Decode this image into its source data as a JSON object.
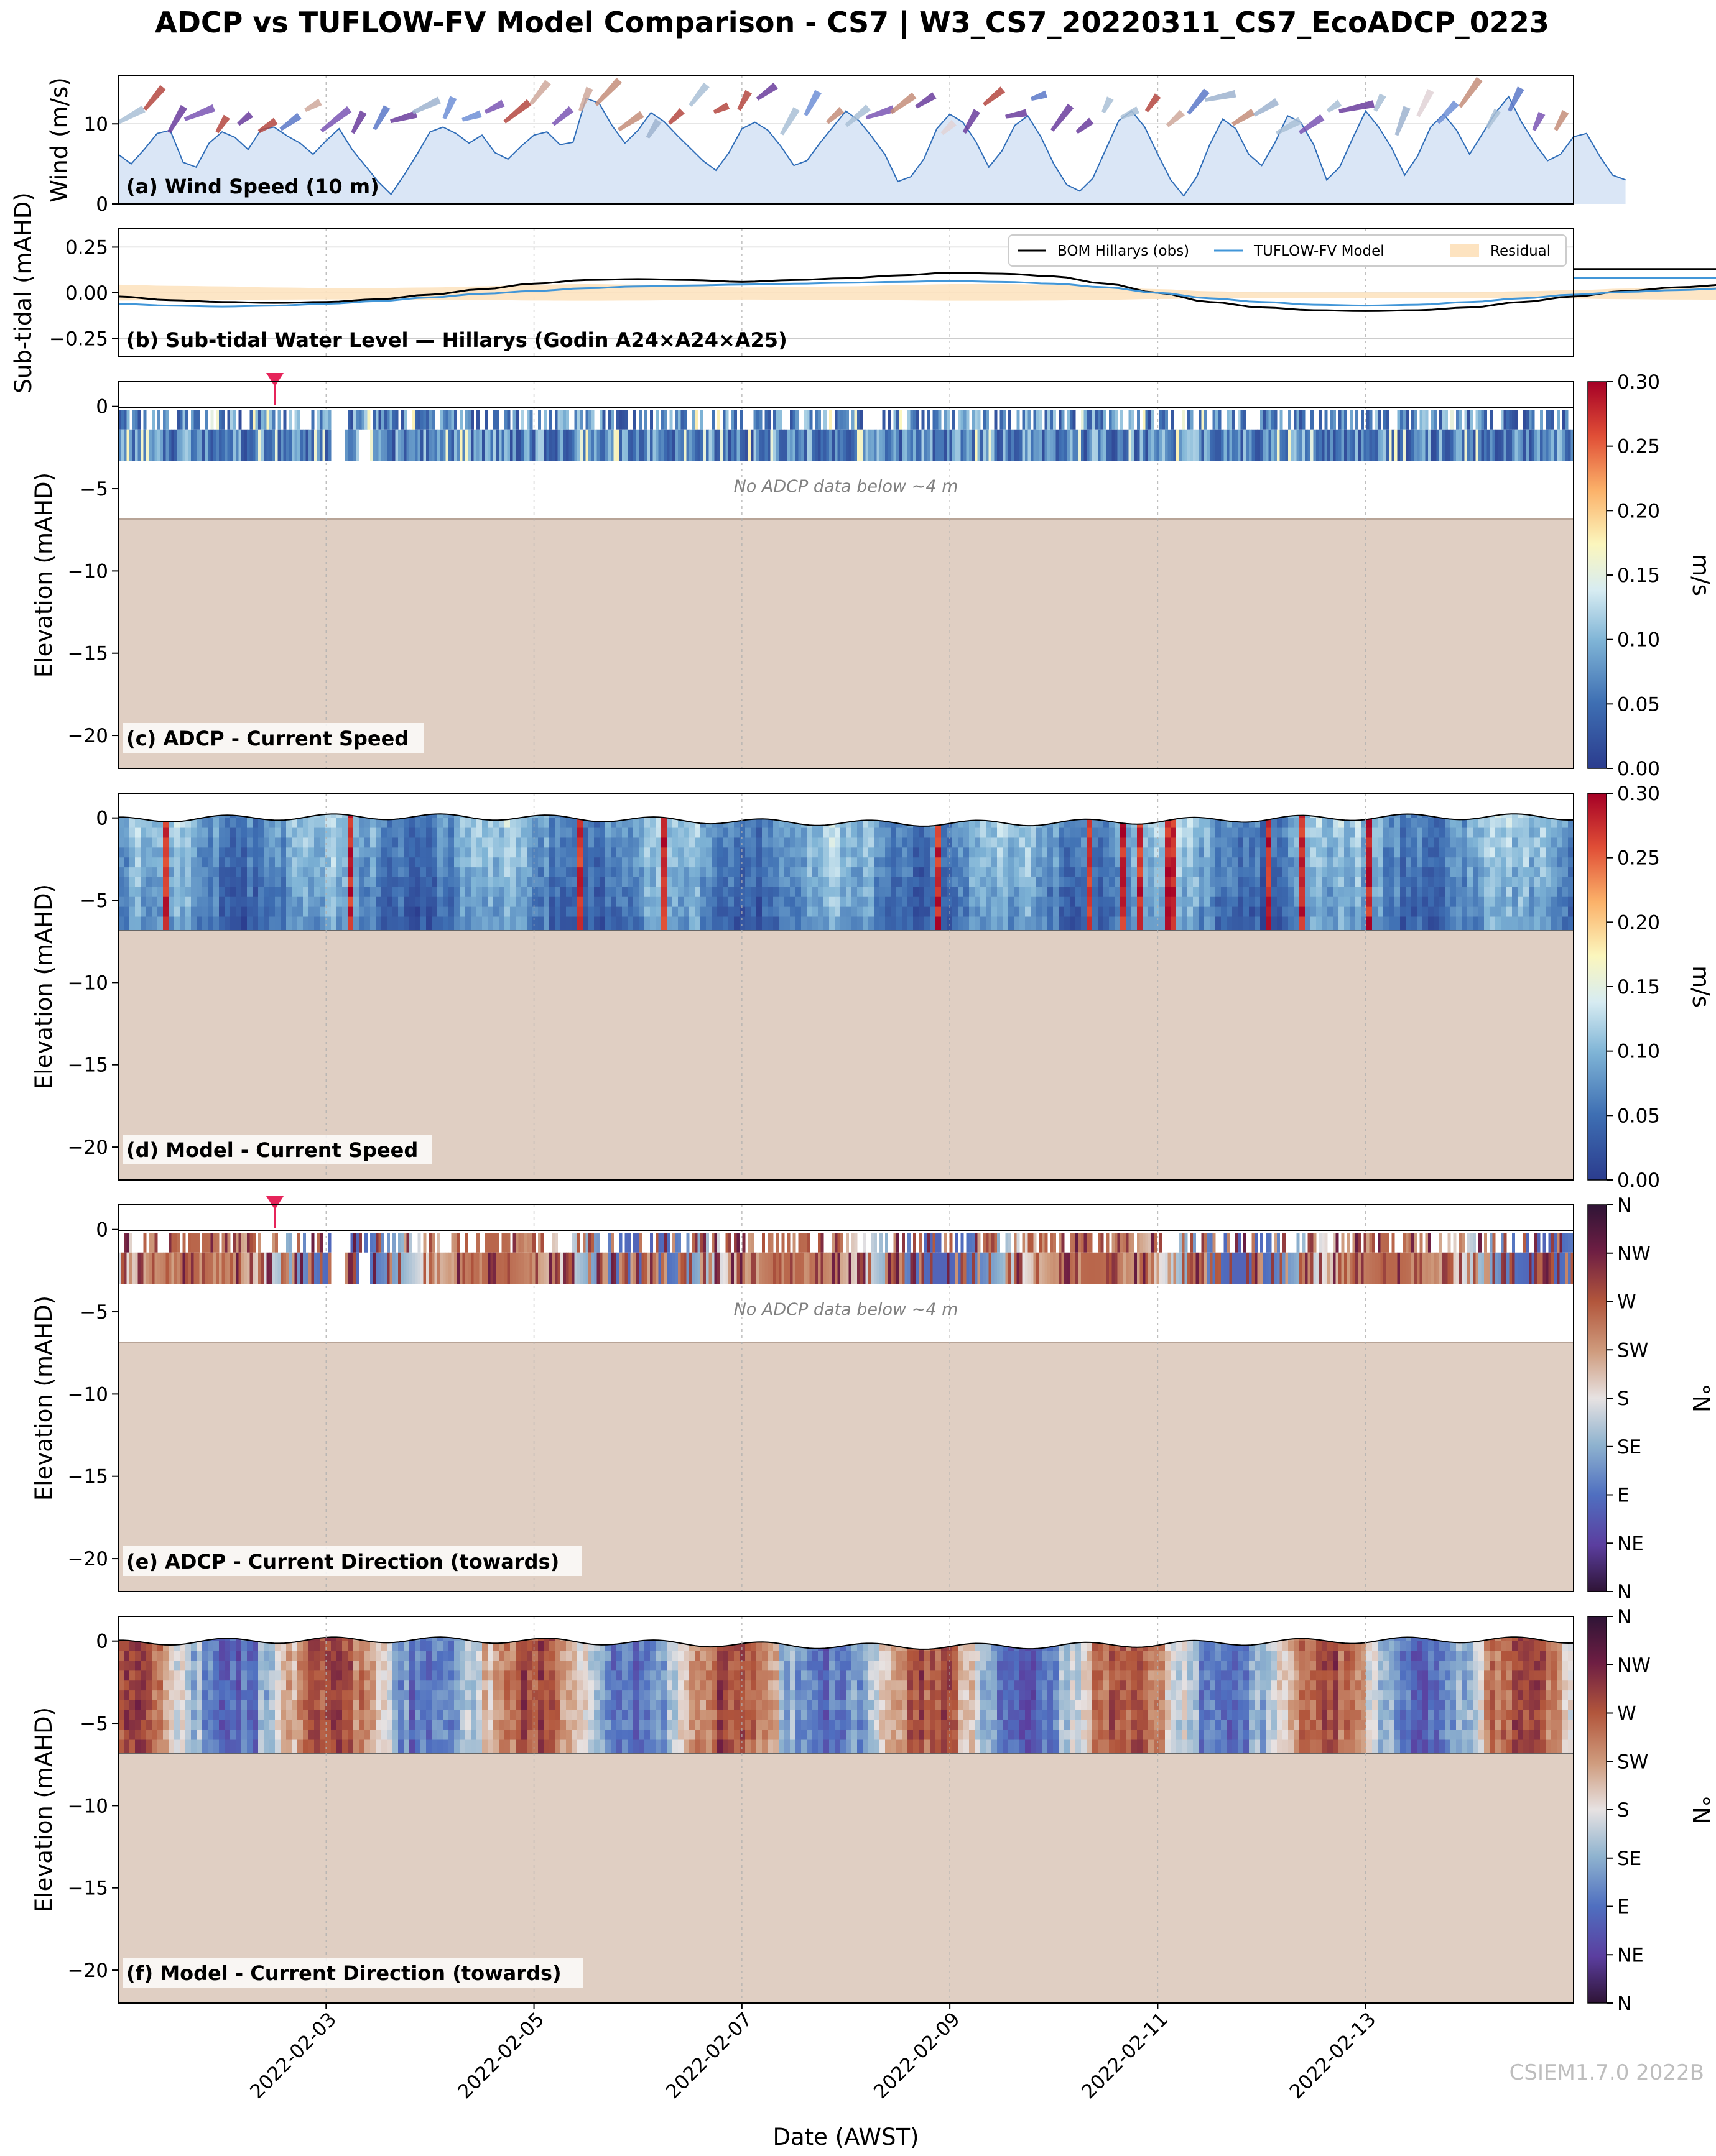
{
  "figure": {
    "title": "ADCP vs TUFLOW-FV Model Comparison - CS7 | W3_CS7_20220311_CS7_EcoADCP_0223",
    "xlabel": "Date (AWST)",
    "x_ticks": [
      "2022-02-03",
      "2022-02-05",
      "2022-02-07",
      "2022-02-09",
      "2022-02-11",
      "2022-02-13"
    ],
    "watermark": "CSIEM1.7.0 2022B",
    "colors": {
      "seabed": "#e0cfc3",
      "wind_fill": "#dae6f6",
      "wind_line": "#2f6db8",
      "marker": "#e6245a",
      "residual": "#fde3c0",
      "obs": "#000000",
      "model": "#4196d8"
    }
  },
  "chart_data": [
    {
      "panel": "a",
      "type": "area",
      "label": "(a) Wind Speed (10 m)",
      "ylabel": "Wind (m/s)",
      "ylim": [
        0,
        16
      ],
      "y_ticks": [
        "0",
        "10"
      ],
      "x_range": [
        "2022-02-01 00:00",
        "2022-02-15 00:00"
      ],
      "series": [
        {
          "x_start": "2022-02-01 00:00",
          "x_step_hours": 3,
          "values": [
            6.2,
            5.0,
            6.8,
            8.8,
            9.2,
            5.2,
            4.6,
            7.6,
            9.0,
            8.3,
            6.8,
            9.3,
            9.6,
            8.5,
            7.6,
            6.2,
            7.9,
            9.4,
            6.8,
            4.8,
            2.8,
            1.2,
            3.6,
            6.2,
            9.0,
            9.6,
            8.8,
            7.6,
            8.6,
            6.4,
            5.6,
            7.2,
            8.6,
            9.0,
            7.4,
            7.7,
            13.2,
            12.6,
            9.8,
            7.6,
            9.2,
            11.4,
            10.3,
            8.6,
            7.0,
            5.4,
            4.2,
            6.4,
            9.4,
            10.2,
            9.2,
            7.2,
            4.8,
            5.4,
            7.6,
            9.6,
            11.6,
            10.4,
            8.4,
            6.2,
            2.8,
            3.4,
            5.6,
            9.4,
            11.2,
            10.2,
            7.8,
            4.6,
            6.6,
            9.8,
            11.0,
            8.4,
            5.0,
            2.4,
            1.6,
            3.2,
            6.8,
            10.4,
            11.6,
            9.6,
            6.2,
            3.0,
            1.0,
            3.4,
            7.4,
            10.6,
            9.4,
            6.2,
            4.8,
            7.6,
            11.0,
            10.2,
            7.4,
            3.0,
            4.6,
            8.2,
            11.6,
            9.6,
            7.0,
            3.6,
            6.0,
            9.6,
            11.2,
            9.2,
            6.2,
            8.8,
            11.4,
            13.4,
            10.2,
            7.6,
            5.4,
            6.2,
            8.4,
            8.8,
            6.0,
            3.6,
            3.0
          ]
        }
      ]
    },
    {
      "panel": "b",
      "type": "line",
      "label": "(b) Sub-tidal Water Level — Hillarys (Godin A24×A24×A25)",
      "ylabel": "Sub-tidal (mAHD)",
      "ylim": [
        -0.35,
        0.35
      ],
      "y_ticks": [
        "−0.25",
        "0.00",
        "0.25"
      ],
      "legend_position": "top-right",
      "x_start": "2022-02-01 00:00",
      "x_step_hours": 12,
      "series": [
        {
          "name": "BOM Hillarys (obs)",
          "values": [
            -0.02,
            -0.04,
            -0.05,
            -0.055,
            -0.05,
            -0.035,
            -0.01,
            0.02,
            0.05,
            0.07,
            0.075,
            0.07,
            0.06,
            0.07,
            0.08,
            0.095,
            0.11,
            0.105,
            0.09,
            0.05,
            0.0,
            -0.05,
            -0.08,
            -0.095,
            -0.1,
            -0.095,
            -0.08,
            -0.05,
            -0.02,
            0.01,
            0.03,
            0.045,
            0.05,
            0.045,
            0.05,
            0.06,
            0.07,
            0.085,
            0.11,
            0.13
          ]
        },
        {
          "name": "TUFLOW-FV Model",
          "values": [
            -0.06,
            -0.07,
            -0.075,
            -0.07,
            -0.06,
            -0.045,
            -0.025,
            -0.005,
            0.01,
            0.025,
            0.035,
            0.04,
            0.045,
            0.05,
            0.055,
            0.06,
            0.065,
            0.06,
            0.05,
            0.03,
            0.0,
            -0.03,
            -0.05,
            -0.065,
            -0.07,
            -0.065,
            -0.05,
            -0.03,
            -0.01,
            0.005,
            0.015,
            0.025,
            0.03,
            0.03,
            0.035,
            0.045,
            0.055,
            0.065,
            0.075,
            0.08
          ]
        },
        {
          "name": "Residual"
        }
      ]
    },
    {
      "panel": "c",
      "type": "heatmap",
      "label": "(c) ADCP - Current Speed",
      "ylabel": "Elevation (mAHD)",
      "ylim": [
        -22,
        1.5
      ],
      "y_ticks": [
        "0",
        "−5",
        "−10",
        "−15",
        "−20"
      ],
      "note": "No ADCP data below ~4 m",
      "colorbar": {
        "label": "m/s",
        "ticks": [
          "0.00",
          "0.05",
          "0.10",
          "0.15",
          "0.20",
          "0.25",
          "0.30"
        ]
      }
    },
    {
      "panel": "d",
      "type": "heatmap",
      "label": "(d) Model - Current Speed",
      "ylabel": "Elevation (mAHD)",
      "ylim": [
        -22,
        1.5
      ],
      "y_ticks": [
        "0",
        "−5",
        "−10",
        "−15",
        "−20"
      ],
      "colorbar": {
        "label": "m/s",
        "ticks": [
          "0.00",
          "0.05",
          "0.10",
          "0.15",
          "0.20",
          "0.25",
          "0.30"
        ]
      }
    },
    {
      "panel": "e",
      "type": "heatmap",
      "label": "(e) ADCP - Current Direction (towards)",
      "ylabel": "Elevation (mAHD)",
      "ylim": [
        -22,
        1.5
      ],
      "y_ticks": [
        "0",
        "−5",
        "−10",
        "−15",
        "−20"
      ],
      "note": "No ADCP data below ~4 m",
      "colorbar": {
        "label": "°N",
        "ticks": [
          "N",
          "NE",
          "E",
          "SE",
          "S",
          "SW",
          "W",
          "NW",
          "N"
        ]
      }
    },
    {
      "panel": "f",
      "type": "heatmap",
      "label": "(f) Model - Current Direction (towards)",
      "ylabel": "Elevation (mAHD)",
      "ylim": [
        -22,
        1.5
      ],
      "y_ticks": [
        "0",
        "−5",
        "−10",
        "−15",
        "−20"
      ],
      "colorbar": {
        "label": "°N",
        "ticks": [
          "N",
          "NE",
          "E",
          "SE",
          "S",
          "SW",
          "W",
          "NW",
          "N"
        ]
      }
    }
  ]
}
